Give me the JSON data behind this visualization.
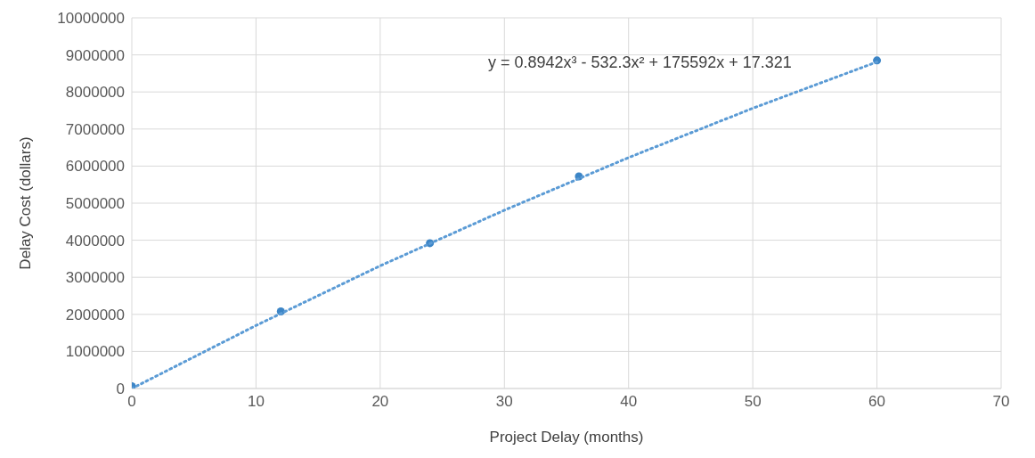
{
  "chart_data": {
    "type": "scatter",
    "xlabel": "Project Delay (months)",
    "ylabel": "Delay Cost (dollars)",
    "xlim": [
      0,
      70
    ],
    "xticks": [
      0,
      10,
      20,
      30,
      40,
      50,
      60,
      70
    ],
    "ylim": [
      0,
      10000000
    ],
    "yticks": [
      0,
      1000000,
      2000000,
      3000000,
      4000000,
      5000000,
      6000000,
      7000000,
      8000000,
      9000000,
      10000000
    ],
    "grid": true,
    "series": [
      {
        "marker": "circle",
        "color": "#3c85c6",
        "x": [
          0,
          12,
          24,
          36,
          60
        ],
        "values": [
          60000,
          2080000,
          3920000,
          5720000,
          8850000
        ]
      },
      {
        "type": "line",
        "marker": "none",
        "color": "#5b9bd5",
        "line_style": "dotted",
        "x": [
          0,
          10,
          20,
          30,
          40,
          50,
          60
        ],
        "values": [
          0,
          1700000,
          3310000,
          4810000,
          6230000,
          7560000,
          8810000
        ]
      }
    ],
    "annotations": [
      "y = 0.8942x³ - 532.3x² + 175592x + 17.321"
    ]
  }
}
